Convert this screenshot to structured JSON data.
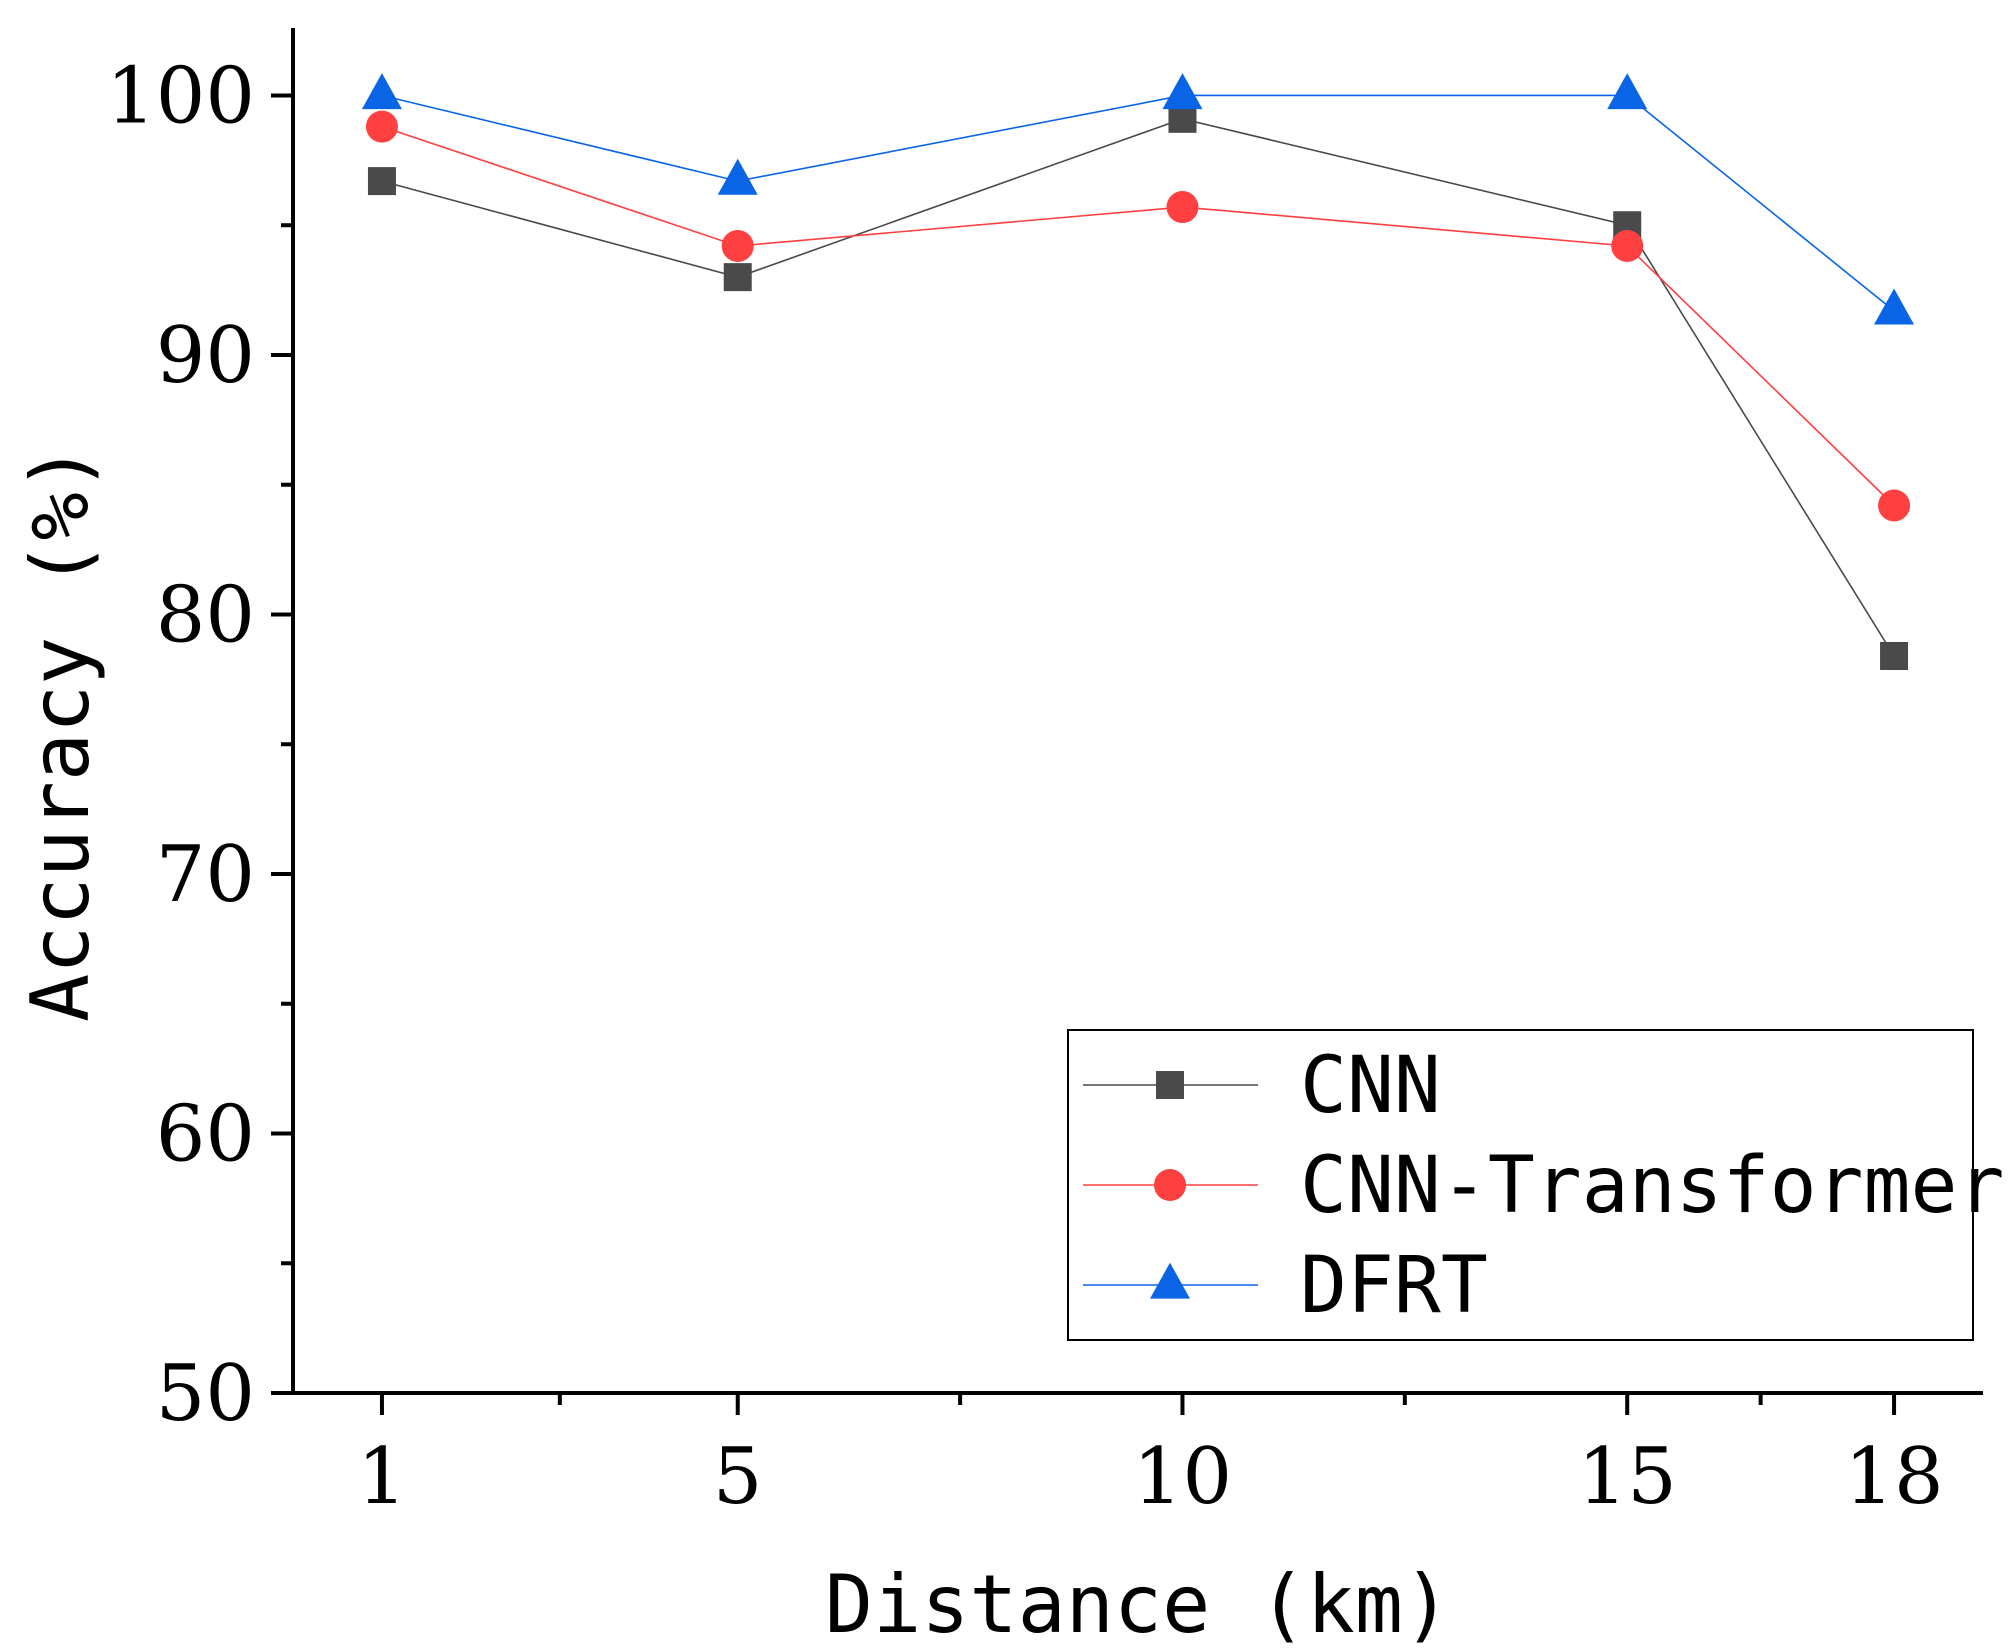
{
  "chart_data": {
    "type": "line",
    "title": "",
    "xlabel": "Distance (km)",
    "ylabel": "Accuracy (%)",
    "x": [
      1,
      5,
      10,
      15,
      18
    ],
    "x_tick_labels": [
      "1",
      "5",
      "10",
      "15",
      "18"
    ],
    "xlim": [
      0,
      19
    ],
    "ylim": [
      50,
      102.6
    ],
    "y_ticks": [
      50,
      60,
      70,
      80,
      90,
      100
    ],
    "y_tick_labels": [
      "50",
      "60",
      "70",
      "80",
      "90",
      "100"
    ],
    "grid": false,
    "legend_position": "bottom-right",
    "series": [
      {
        "name": "CNN",
        "values": [
          96.7,
          93.0,
          99.1,
          95.0,
          78.4
        ],
        "color": "#4a4a4a",
        "marker": "square"
      },
      {
        "name": "CNN-Transformer",
        "values": [
          98.8,
          94.2,
          95.7,
          94.2,
          84.2
        ],
        "color": "#ff4040",
        "marker": "circle"
      },
      {
        "name": "DFRT",
        "values": [
          100,
          96.7,
          100,
          100,
          91.7
        ],
        "color": "#0a64e6",
        "marker": "triangle"
      }
    ]
  }
}
